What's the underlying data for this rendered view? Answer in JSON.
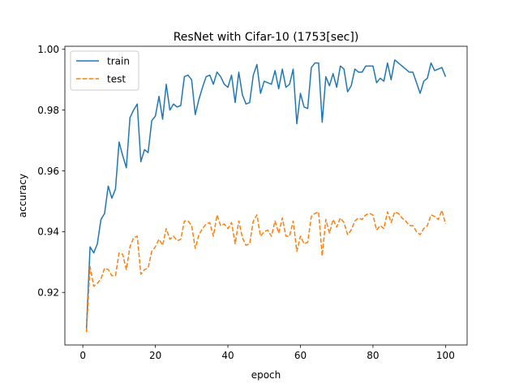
{
  "chart_data": {
    "type": "line",
    "title": "ResNet with Cifar-10 (1753[sec])",
    "xlabel": "epoch",
    "ylabel": "accuracy",
    "xlim": [
      -4.95,
      105.95
    ],
    "ylim": [
      0.9027,
      1.001
    ],
    "xticks": [
      0,
      20,
      40,
      60,
      80,
      100
    ],
    "yticks": [
      0.92,
      0.94,
      0.96,
      0.98,
      1.0
    ],
    "ytick_labels": [
      "0.92",
      "0.94",
      "0.96",
      "0.98",
      "1.00"
    ],
    "grid": false,
    "legend_position": "top-left",
    "x": [
      1,
      2,
      3,
      4,
      5,
      6,
      7,
      8,
      9,
      10,
      11,
      12,
      13,
      14,
      15,
      16,
      17,
      18,
      19,
      20,
      21,
      22,
      23,
      24,
      25,
      26,
      27,
      28,
      29,
      30,
      31,
      32,
      33,
      34,
      35,
      36,
      37,
      38,
      39,
      40,
      41,
      42,
      43,
      44,
      45,
      46,
      47,
      48,
      49,
      50,
      51,
      52,
      53,
      54,
      55,
      56,
      57,
      58,
      59,
      60,
      61,
      62,
      63,
      64,
      65,
      66,
      67,
      68,
      69,
      70,
      71,
      72,
      73,
      74,
      75,
      76,
      77,
      78,
      79,
      80,
      81,
      82,
      83,
      84,
      85,
      86,
      87,
      88,
      89,
      90,
      91,
      92,
      93,
      94,
      95,
      96,
      97,
      98,
      99,
      100
    ],
    "series": [
      {
        "name": "train",
        "color": "#1f77b4",
        "style": "solid",
        "values": [
          0.908,
          0.935,
          0.933,
          0.936,
          0.944,
          0.946,
          0.955,
          0.951,
          0.954,
          0.9695,
          0.965,
          0.961,
          0.9775,
          0.98,
          0.982,
          0.963,
          0.967,
          0.966,
          0.9765,
          0.978,
          0.9845,
          0.977,
          0.9885,
          0.98,
          0.982,
          0.981,
          0.9815,
          0.991,
          0.9915,
          0.99,
          0.9785,
          0.9835,
          0.9875,
          0.991,
          0.9915,
          0.9885,
          0.9925,
          0.991,
          0.9885,
          0.9875,
          0.9915,
          0.9825,
          0.9925,
          0.985,
          0.982,
          0.9825,
          0.9915,
          0.995,
          0.9855,
          0.9895,
          0.989,
          0.9885,
          0.993,
          0.987,
          0.9935,
          0.9875,
          0.9885,
          0.9935,
          0.9755,
          0.9855,
          0.981,
          0.9805,
          0.994,
          0.9955,
          0.9955,
          0.976,
          0.991,
          0.988,
          0.992,
          0.9875,
          0.9945,
          0.9935,
          0.986,
          0.988,
          0.9935,
          0.9925,
          0.9925,
          0.9945,
          0.9945,
          0.9945,
          0.989,
          0.9905,
          0.9895,
          0.9955,
          0.99,
          0.9965,
          0.9955,
          0.9945,
          0.9935,
          0.9925,
          0.9925,
          0.989,
          0.9855,
          0.9895,
          0.9905,
          0.9955,
          0.993,
          0.9935,
          0.994,
          0.991
        ]
      },
      {
        "name": "test",
        "color": "#ff7f0e",
        "style": "dashed",
        "values": [
          0.907,
          0.9285,
          0.922,
          0.923,
          0.9245,
          0.928,
          0.9275,
          0.9255,
          0.9255,
          0.933,
          0.9325,
          0.9275,
          0.935,
          0.938,
          0.9385,
          0.926,
          0.9275,
          0.928,
          0.9335,
          0.935,
          0.9375,
          0.9355,
          0.941,
          0.9375,
          0.9385,
          0.937,
          0.9375,
          0.9435,
          0.9435,
          0.942,
          0.9345,
          0.939,
          0.941,
          0.9425,
          0.943,
          0.9385,
          0.9455,
          0.942,
          0.9425,
          0.941,
          0.943,
          0.936,
          0.9435,
          0.938,
          0.9355,
          0.936,
          0.9435,
          0.9455,
          0.9385,
          0.94,
          0.9405,
          0.9385,
          0.9435,
          0.9395,
          0.9445,
          0.9385,
          0.9385,
          0.9435,
          0.9335,
          0.9385,
          0.936,
          0.9365,
          0.945,
          0.946,
          0.9465,
          0.932,
          0.944,
          0.9395,
          0.944,
          0.9415,
          0.9445,
          0.943,
          0.939,
          0.9405,
          0.9435,
          0.9445,
          0.944,
          0.9455,
          0.946,
          0.9455,
          0.9405,
          0.942,
          0.941,
          0.9465,
          0.943,
          0.9465,
          0.946,
          0.9445,
          0.9435,
          0.942,
          0.942,
          0.94,
          0.939,
          0.941,
          0.942,
          0.9455,
          0.945,
          0.944,
          0.947,
          0.9425
        ]
      }
    ]
  }
}
